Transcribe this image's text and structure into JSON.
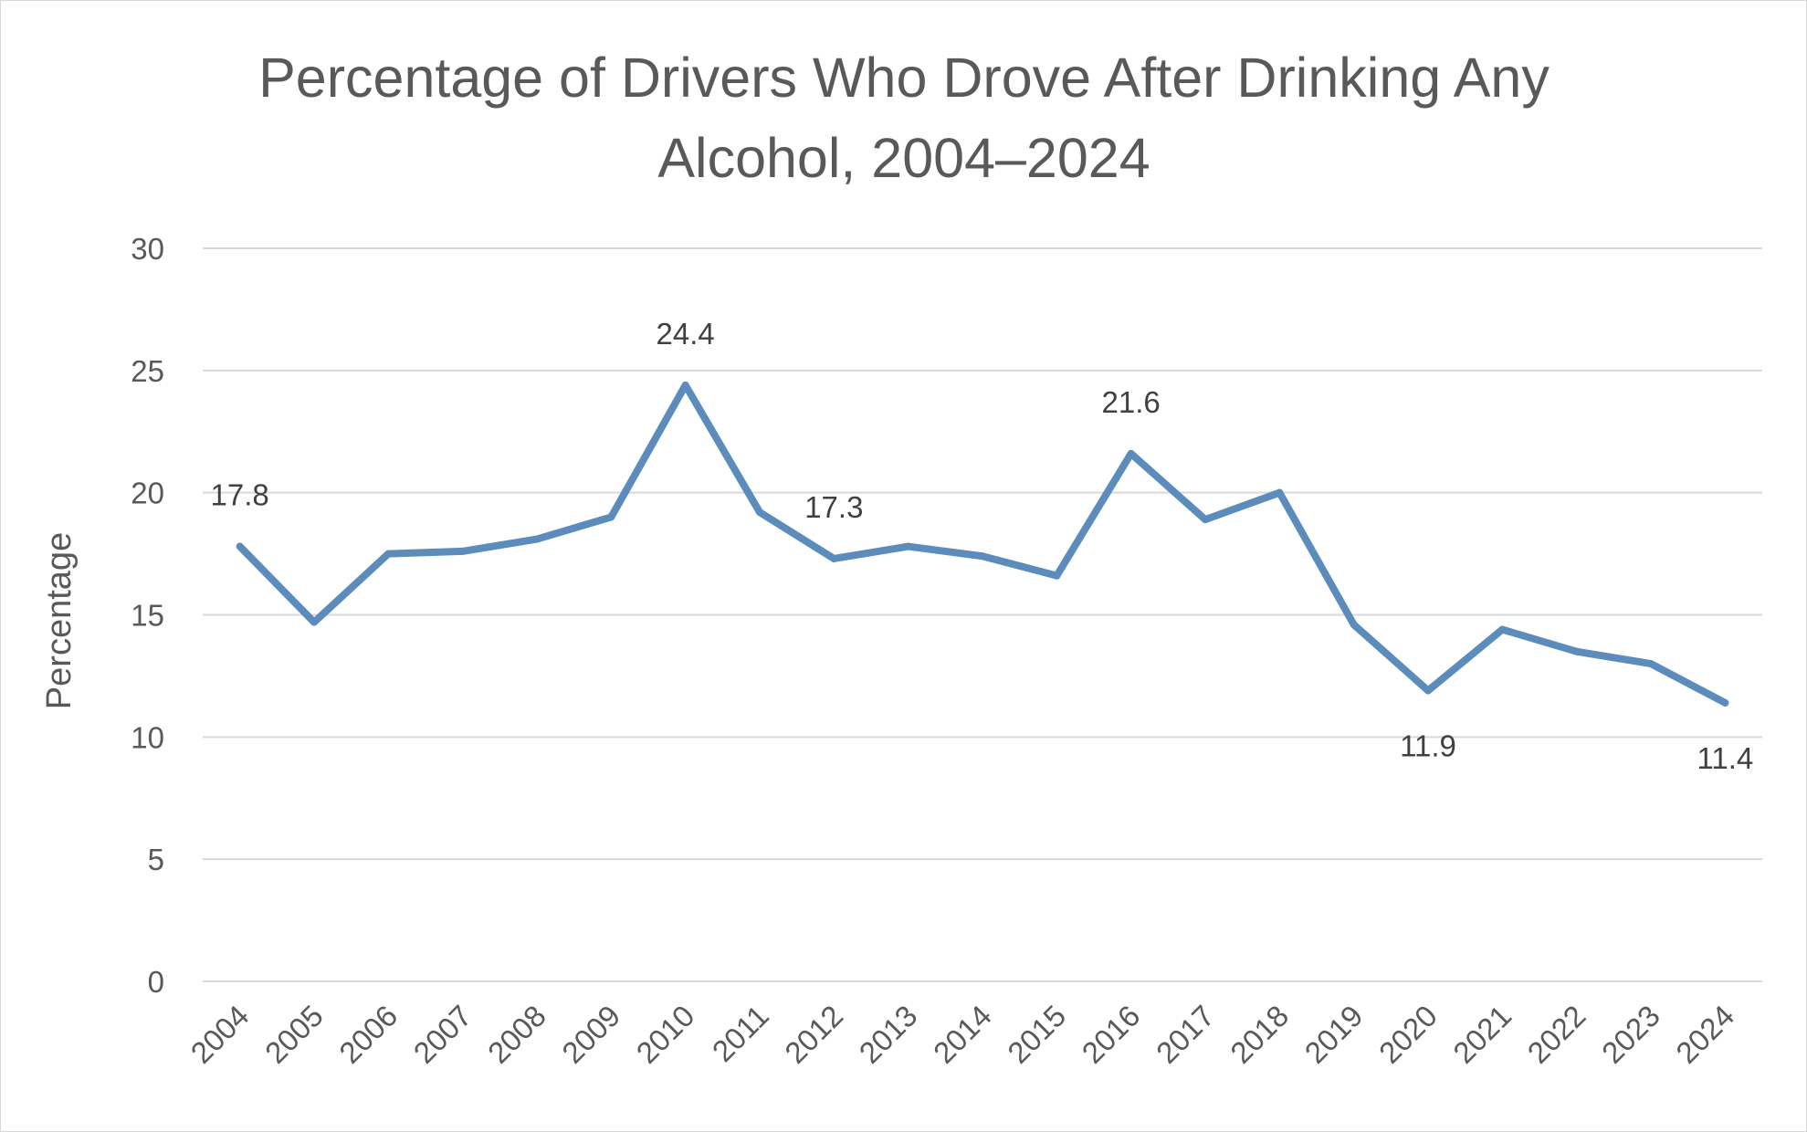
{
  "chart_data": {
    "type": "line",
    "title_lines": [
      "Percentage of Drivers Who Drove After Drinking Any",
      "Alcohol, 2004–2024"
    ],
    "ylabel": "Percentage",
    "xlabel": "",
    "ylim": [
      0,
      30
    ],
    "yticks": [
      "0",
      "5",
      "10",
      "15",
      "20",
      "25",
      "30"
    ],
    "categories": [
      "2004",
      "2005",
      "2006",
      "2007",
      "2008",
      "2009",
      "2010",
      "2011",
      "2012",
      "2013",
      "2014",
      "2015",
      "2016",
      "2017",
      "2018",
      "2019",
      "2020",
      "2021",
      "2022",
      "2023",
      "2024"
    ],
    "series": [
      {
        "values": [
          17.8,
          14.7,
          17.5,
          17.6,
          18.1,
          19.0,
          24.4,
          19.2,
          17.3,
          17.8,
          17.4,
          16.6,
          21.6,
          18.9,
          20.0,
          14.6,
          11.9,
          14.4,
          13.5,
          13.0,
          11.4
        ],
        "color": "#5b8cbc"
      }
    ],
    "data_labels": [
      {
        "category": "2004",
        "text": "17.8",
        "position": "above"
      },
      {
        "category": "2010",
        "text": "24.4",
        "position": "above"
      },
      {
        "category": "2012",
        "text": "17.3",
        "position": "above"
      },
      {
        "category": "2016",
        "text": "21.6",
        "position": "above"
      },
      {
        "category": "2020",
        "text": "11.9",
        "position": "below"
      },
      {
        "category": "2024",
        "text": "11.4",
        "position": "below"
      }
    ],
    "grid": true,
    "legend": "none"
  }
}
